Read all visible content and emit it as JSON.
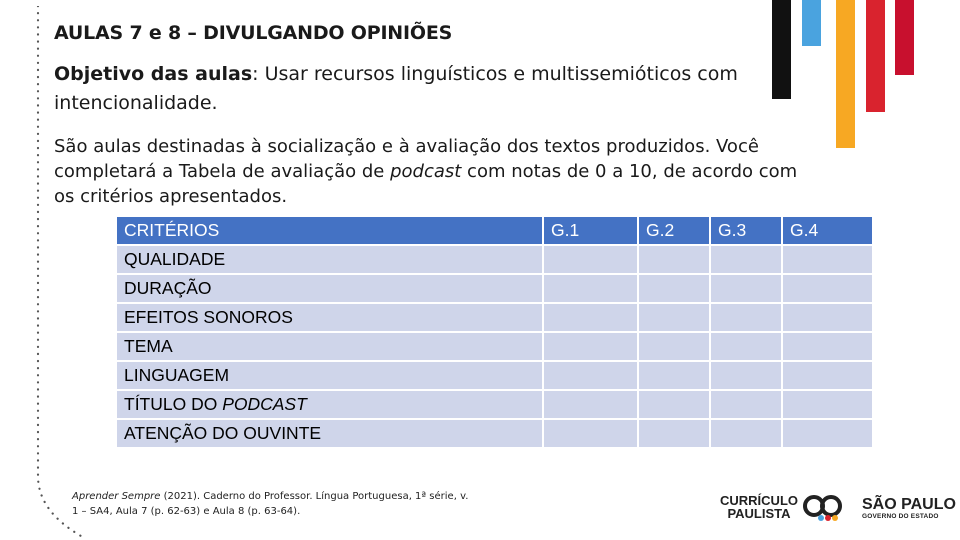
{
  "title": "AULAS 7 e 8 – DIVULGANDO OPINIÕES",
  "objective": {
    "label": "Objetivo das aulas",
    "text": ": Usar recursos linguísticos e multissemióticos com intencionalidade."
  },
  "intro": {
    "part1": "São aulas destinadas à socialização e à avaliação dos textos produzidos. Você completará a Tabela de avaliação de ",
    "italic": "podcast",
    "part2": " com notas de 0 a 10, de acordo com os critérios apresentados."
  },
  "table": {
    "headers": [
      "CRITÉRIOS",
      "G.1",
      "G.2",
      "G.3",
      "G.4"
    ],
    "rows": [
      "QUALIDADE",
      "DURAÇÃO",
      "EFEITOS SONOROS",
      "TEMA",
      "LINGUAGEM"
    ],
    "row_title": {
      "prefix": "TÍTULO DO ",
      "italic": "PODCAST"
    },
    "row_last": "ATENÇÃO DO OUVINTE"
  },
  "source": {
    "italic": "Aprender Sempre",
    "text": " (2021). Caderno do Professor. Língua Portuguesa, 1ª série, v. 1 – SA4, Aula 7 (p. 62-63) e Aula 8 (p. 63-64)."
  },
  "logos": {
    "curriculo_line1": "CURRÍCULO",
    "curriculo_line2": "PAULISTA",
    "sp_line1": "SÃO PAULO",
    "sp_line2": "GOVERNO DO ESTADO"
  },
  "colors": {
    "header_blue": "#4472c4",
    "row_fill": "#cfd5ea",
    "stripe_black": "#111111",
    "stripe_blue": "#4aa3df",
    "stripe_orange": "#f7a823",
    "stripe_red": "#d9232e"
  }
}
